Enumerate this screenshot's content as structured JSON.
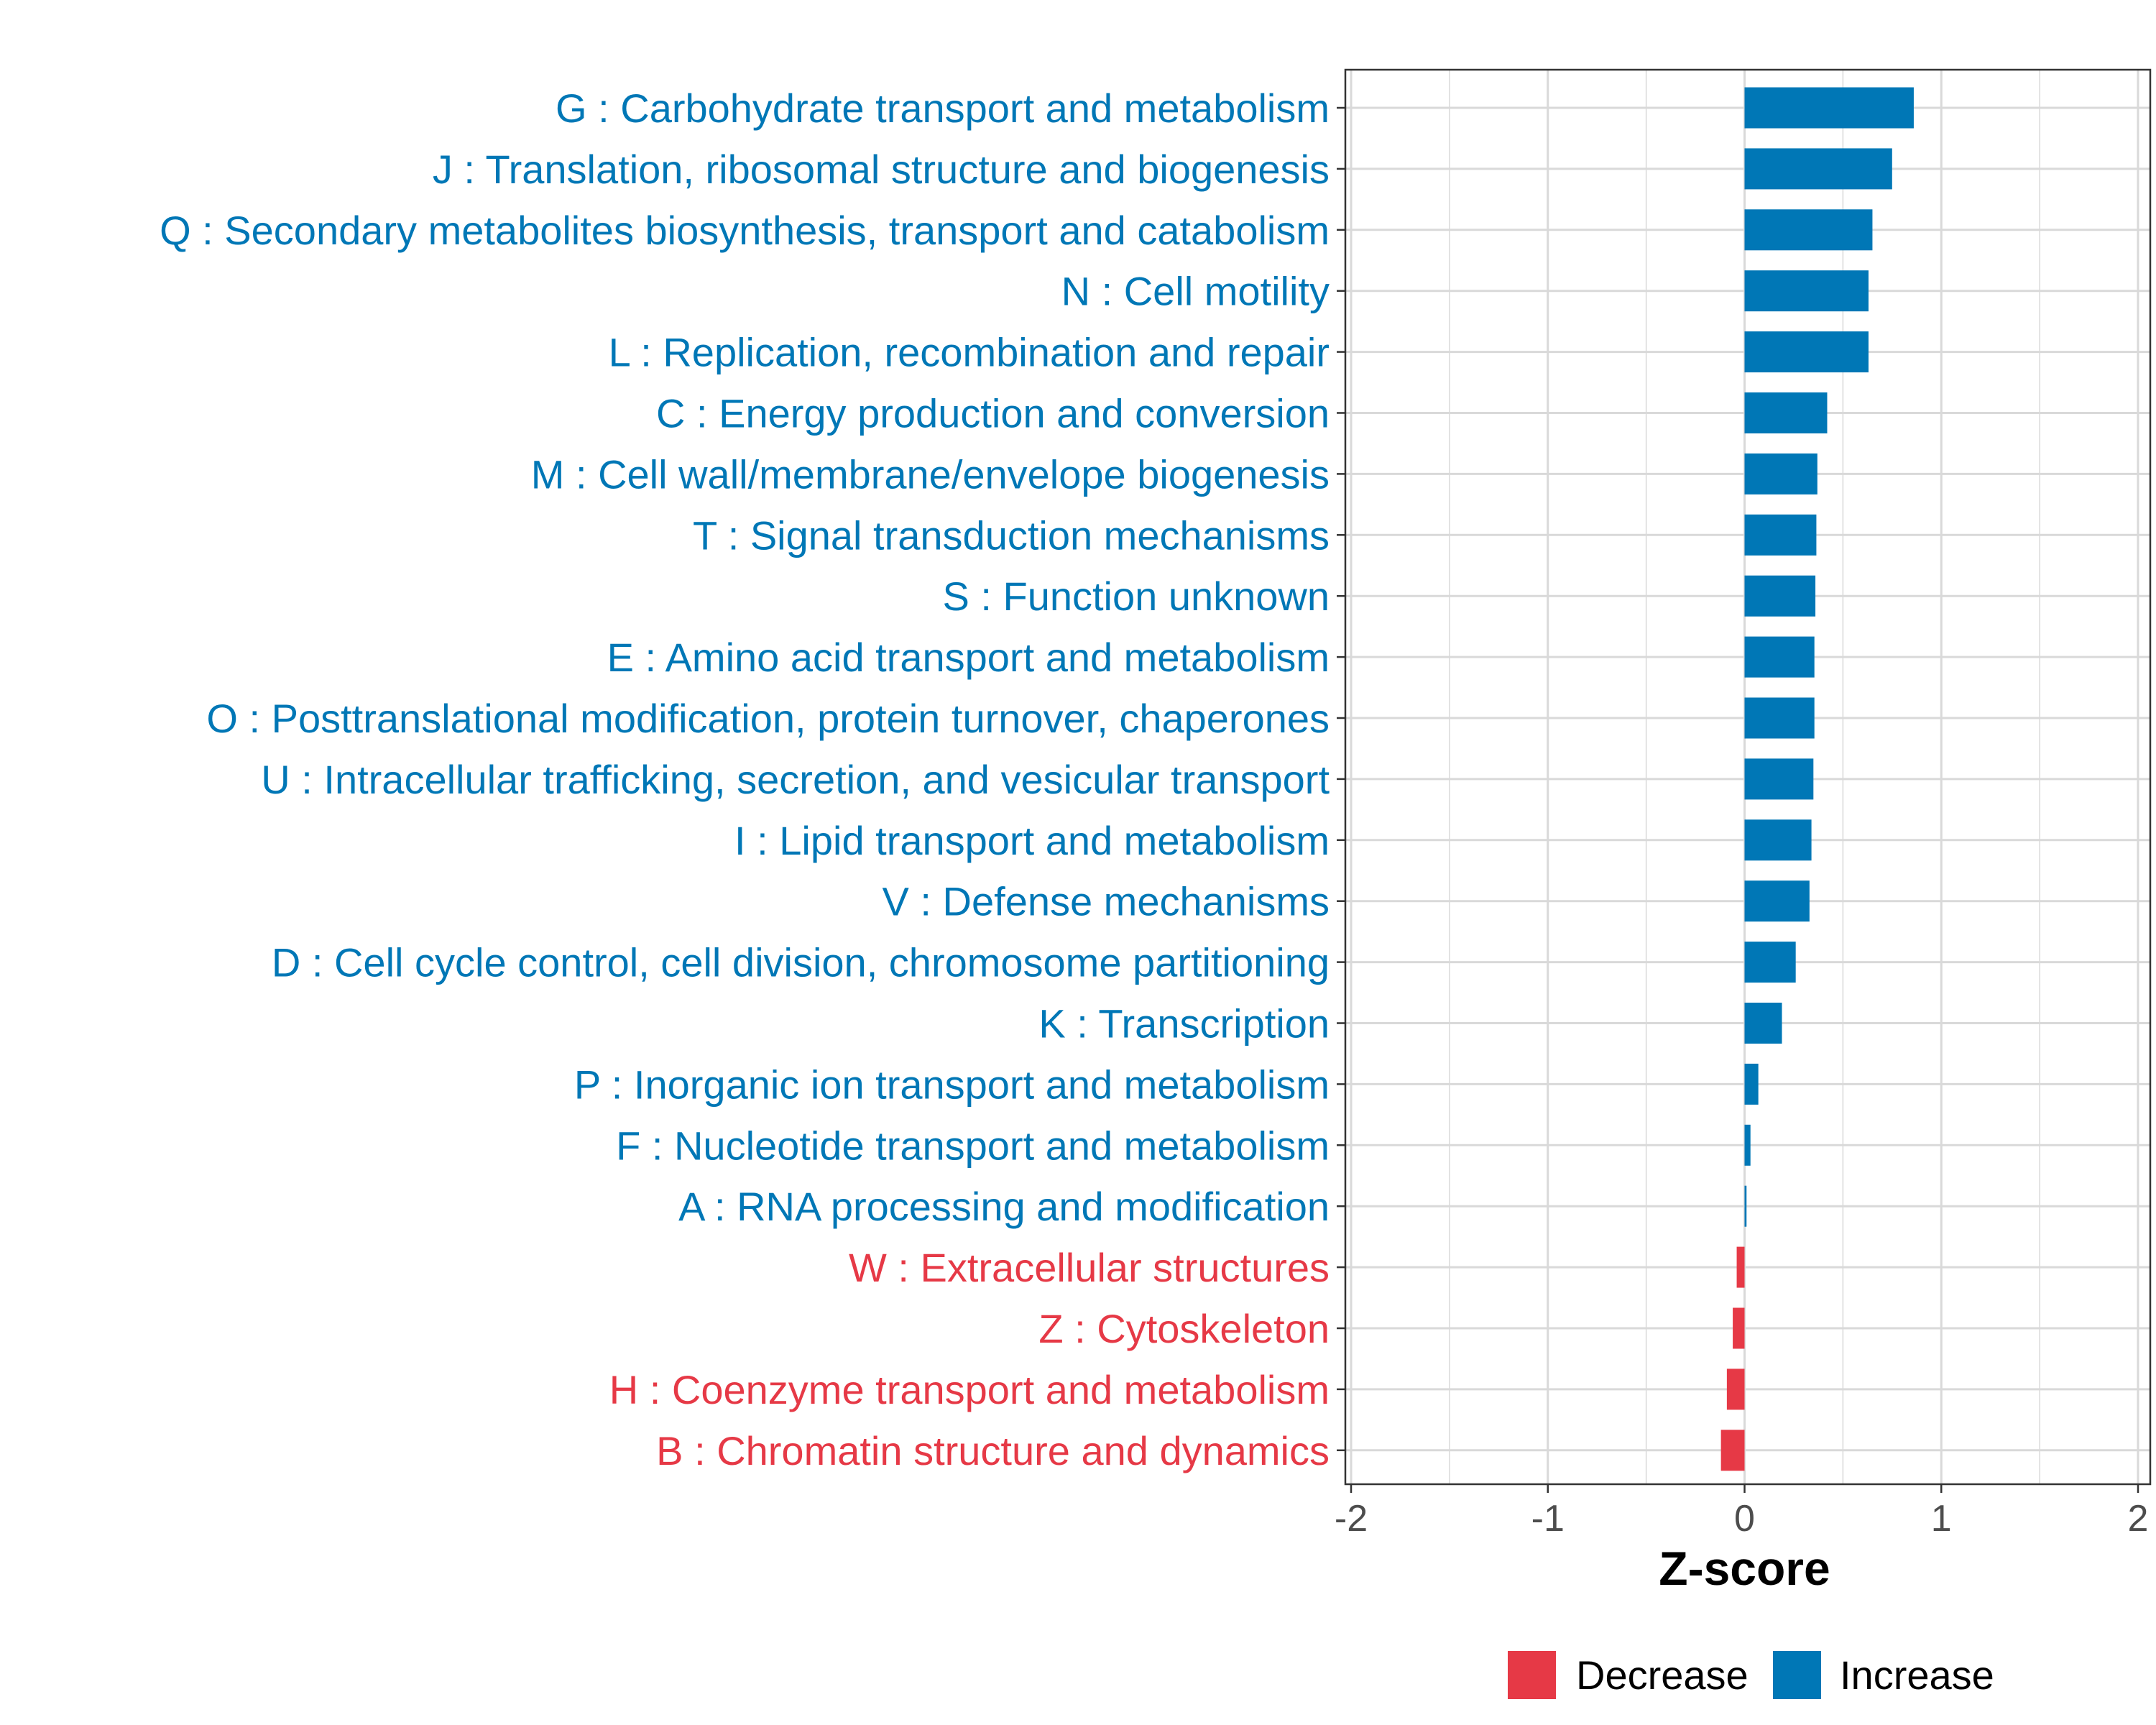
{
  "colors": {
    "increase": "#0077b6",
    "decrease": "#e63946",
    "grid": "#d9d9d9",
    "panel_border": "#333333",
    "tick_text": "#4d4d4d"
  },
  "chart_data": {
    "type": "bar",
    "orientation": "horizontal",
    "title": "",
    "xlabel": "Z-score",
    "ylabel": "",
    "xlim": [
      -2,
      2
    ],
    "xticks": [
      -2,
      -1,
      0,
      1,
      2
    ],
    "xtick_labels": [
      "-2",
      "-1",
      "0",
      "1",
      "2"
    ],
    "grid": true,
    "legend_position": "bottom",
    "legend": [
      {
        "label": "Decrease",
        "color_key": "decrease"
      },
      {
        "label": "Increase",
        "color_key": "increase"
      }
    ],
    "bars": [
      {
        "label": "G : Carbohydrate transport and metabolism",
        "value": 0.86,
        "group": "increase"
      },
      {
        "label": "J : Translation, ribosomal structure and biogenesis",
        "value": 0.75,
        "group": "increase"
      },
      {
        "label": "Q : Secondary metabolites biosynthesis, transport and catabolism",
        "value": 0.65,
        "group": "increase"
      },
      {
        "label": "N : Cell motility",
        "value": 0.63,
        "group": "increase"
      },
      {
        "label": "L : Replication, recombination and repair",
        "value": 0.63,
        "group": "increase"
      },
      {
        "label": "C : Energy production and conversion",
        "value": 0.42,
        "group": "increase"
      },
      {
        "label": "M : Cell wall/membrane/envelope biogenesis",
        "value": 0.37,
        "group": "increase"
      },
      {
        "label": "T : Signal transduction mechanisms",
        "value": 0.365,
        "group": "increase"
      },
      {
        "label": "S : Function unknown",
        "value": 0.36,
        "group": "increase"
      },
      {
        "label": "E : Amino acid transport and metabolism",
        "value": 0.355,
        "group": "increase"
      },
      {
        "label": "O : Posttranslational modification, protein turnover, chaperones",
        "value": 0.355,
        "group": "increase"
      },
      {
        "label": "U : Intracellular trafficking, secretion, and vesicular transport",
        "value": 0.35,
        "group": "increase"
      },
      {
        "label": "I : Lipid transport and metabolism",
        "value": 0.34,
        "group": "increase"
      },
      {
        "label": "V : Defense mechanisms",
        "value": 0.33,
        "group": "increase"
      },
      {
        "label": "D : Cell cycle control, cell division, chromosome partitioning",
        "value": 0.26,
        "group": "increase"
      },
      {
        "label": "K : Transcription",
        "value": 0.19,
        "group": "increase"
      },
      {
        "label": "P : Inorganic ion transport and metabolism",
        "value": 0.07,
        "group": "increase"
      },
      {
        "label": "F : Nucleotide transport and metabolism",
        "value": 0.03,
        "group": "increase"
      },
      {
        "label": "A : RNA processing and modification",
        "value": 0.01,
        "group": "increase"
      },
      {
        "label": "W : Extracellular structures",
        "value": -0.04,
        "group": "decrease"
      },
      {
        "label": "Z : Cytoskeleton",
        "value": -0.06,
        "group": "decrease"
      },
      {
        "label": "H : Coenzyme transport and metabolism",
        "value": -0.09,
        "group": "decrease"
      },
      {
        "label": "B : Chromatin structure and dynamics",
        "value": -0.12,
        "group": "decrease"
      }
    ]
  }
}
